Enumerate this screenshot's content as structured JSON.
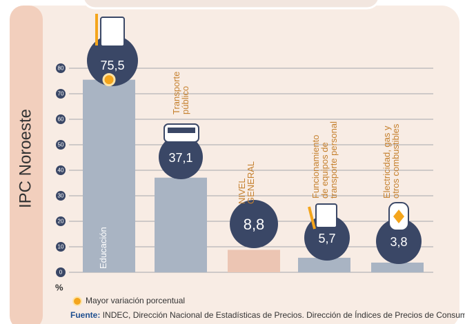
{
  "chart_data": {
    "type": "bar",
    "y_axis_title": "IPC Noroeste",
    "unit_label": "%",
    "categories": [
      "Educación",
      "Transporte\npúblico",
      "NIVEL\nGENERAL",
      "Funcionamiento\nde equipos de\ntransporte personal",
      "Electricidad, gas y\notros combustibles"
    ],
    "values": [
      75.5,
      37.1,
      8.8,
      5.7,
      3.8
    ],
    "value_labels": [
      "75,5",
      "37,1",
      "8,8",
      "5,7",
      "3,8"
    ],
    "colors": [
      "#a9b4c3",
      "#a9b4c3",
      "#ecc5b3",
      "#a9b4c3",
      "#a9b4c3"
    ],
    "ylim": [
      0,
      80
    ],
    "yticks": [
      0,
      10,
      20,
      30,
      40,
      50,
      60,
      70,
      80
    ],
    "grid": true,
    "highlight_legend": "Mayor variación porcentual",
    "source_label": "Fuente:",
    "source": "INDEC, Dirección Nacional de Estadísticas de Precios. Dirección de Índices de Precios de Consumo."
  }
}
